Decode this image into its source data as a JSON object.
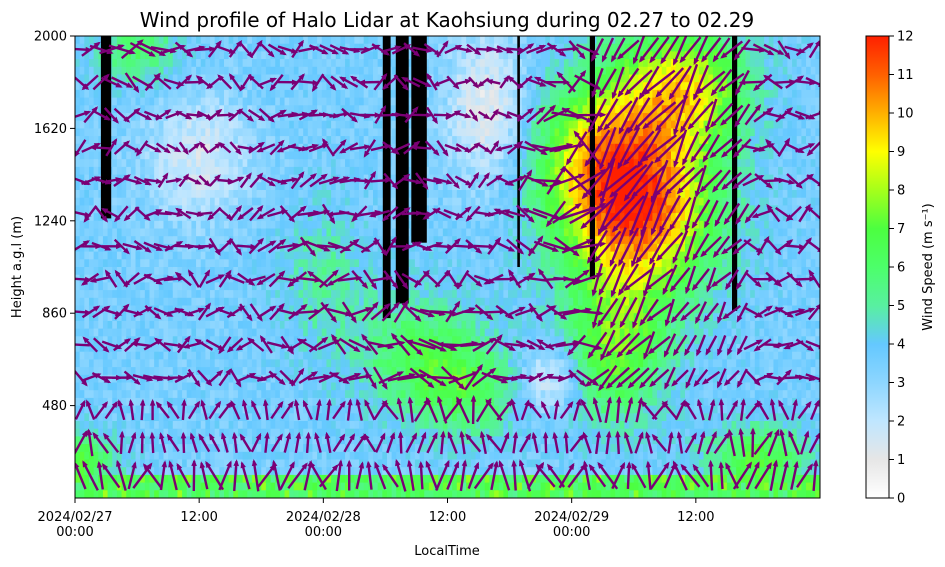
{
  "chart_data": {
    "type": "heatmap",
    "title": "Wind profile of Halo Lidar at Kaohsiung during 02.27 to 02.29",
    "xlabel": "LocalTime",
    "ylabel": "Height a.g.l (m)",
    "x_range": [
      "2024-02-27 00:00",
      "2024-03-01 00:00"
    ],
    "ylim": [
      100,
      2000
    ],
    "x_ticks": [
      {
        "value": "2024-02-27 00:00",
        "line1": "2024/02/27",
        "line2": "00:00"
      },
      {
        "value": "2024-02-27 12:00",
        "line1": "12:00",
        "line2": ""
      },
      {
        "value": "2024-02-28 00:00",
        "line1": "2024/02/28",
        "line2": "00:00"
      },
      {
        "value": "2024-02-28 12:00",
        "line1": "12:00",
        "line2": ""
      },
      {
        "value": "2024-02-29 00:00",
        "line1": "2024/02/29",
        "line2": "00:00"
      },
      {
        "value": "2024-02-29 12:00",
        "line1": "12:00",
        "line2": ""
      }
    ],
    "y_ticks": [
      480,
      860,
      1240,
      1620,
      2000
    ],
    "colorbar": {
      "label": "Wind Speed (m s⁻¹)",
      "min": 0,
      "max": 12,
      "ticks": [
        0,
        1,
        2,
        3,
        4,
        5,
        6,
        7,
        8,
        9,
        10,
        11,
        12
      ],
      "colors": [
        {
          "value": 0,
          "color": "#ffffff"
        },
        {
          "value": 1,
          "color": "#e6e6e6"
        },
        {
          "value": 2,
          "color": "#bfe6ff"
        },
        {
          "value": 3,
          "color": "#8dd6ff"
        },
        {
          "value": 4,
          "color": "#64c8ff"
        },
        {
          "value": 5,
          "color": "#58f0a0"
        },
        {
          "value": 6,
          "color": "#4cff6a"
        },
        {
          "value": 7,
          "color": "#4cff40"
        },
        {
          "value": 8,
          "color": "#a6ff1a"
        },
        {
          "value": 9,
          "color": "#ffff00"
        },
        {
          "value": 10,
          "color": "#ffb000"
        },
        {
          "value": 11,
          "color": "#ff6000"
        },
        {
          "value": 12,
          "color": "#ff2000"
        }
      ]
    },
    "arrow_color": "#7a0075",
    "missing_color": "#000000",
    "missing_data_bands": [
      {
        "start": "2024-02-27 02:30",
        "end": "2024-02-27 03:30",
        "from_height": 1250
      },
      {
        "start": "2024-02-28 05:45",
        "end": "2024-02-28 06:30",
        "from_height": 840
      },
      {
        "start": "2024-02-28 07:00",
        "end": "2024-02-28 08:15",
        "from_height": 900
      },
      {
        "start": "2024-02-28 08:30",
        "end": "2024-02-28 10:00",
        "from_height": 1150
      },
      {
        "start": "2024-02-28 18:45",
        "end": "2024-02-28 19:00",
        "from_height": 1050
      },
      {
        "start": "2024-02-29 01:45",
        "end": "2024-02-29 02:15",
        "from_height": 1000
      },
      {
        "start": "2024-02-29 15:30",
        "end": "2024-02-29 16:00",
        "from_height": 870
      }
    ],
    "speed_features": [
      {
        "time": "2024-02-29 07:00",
        "height": 1300,
        "speed": 10.5,
        "time_spread_h": 7,
        "height_spread_m": 380
      },
      {
        "time": "2024-02-29 02:00",
        "height": 1500,
        "speed": 7.5,
        "time_spread_h": 6,
        "height_spread_m": 350
      },
      {
        "time": "2024-02-29 11:00",
        "height": 1800,
        "speed": 8.5,
        "time_spread_h": 6,
        "height_spread_m": 250
      },
      {
        "time": "2024-02-29 04:00",
        "height": 700,
        "speed": 7.0,
        "time_spread_h": 5,
        "height_spread_m": 300
      },
      {
        "time": "2024-02-28 09:00",
        "height": 700,
        "speed": 6.0,
        "time_spread_h": 6,
        "height_spread_m": 250
      },
      {
        "time": "2024-02-28 14:00",
        "height": 550,
        "speed": 6.0,
        "time_spread_h": 5,
        "height_spread_m": 200
      },
      {
        "time": "2024-02-27 06:00",
        "height": 1950,
        "speed": 6.0,
        "time_spread_h": 4,
        "height_spread_m": 150
      },
      {
        "time": "2024-02-27 00:00",
        "height": 250,
        "speed": 7.0,
        "time_spread_h": 4,
        "height_spread_m": 120
      },
      {
        "time": "2024-02-29 18:00",
        "height": 250,
        "speed": 7.0,
        "time_spread_h": 5,
        "height_spread_m": 150
      },
      {
        "time": "2024-02-28 00:00",
        "height": 1000,
        "speed": 5.0,
        "time_spread_h": 4,
        "height_spread_m": 300
      },
      {
        "time": "2024-02-27 12:00",
        "height": 1500,
        "speed": 1.5,
        "time_spread_h": 5,
        "height_spread_m": 250
      },
      {
        "time": "2024-02-28 16:00",
        "height": 1700,
        "speed": 1.0,
        "time_spread_h": 4,
        "height_spread_m": 300
      },
      {
        "time": "2024-02-28 22:00",
        "height": 600,
        "speed": 1.0,
        "time_spread_h": 3,
        "height_spread_m": 150
      }
    ],
    "background_speed": 3.5,
    "surface_layer": {
      "below_height": 200,
      "speed": 6.5
    }
  }
}
